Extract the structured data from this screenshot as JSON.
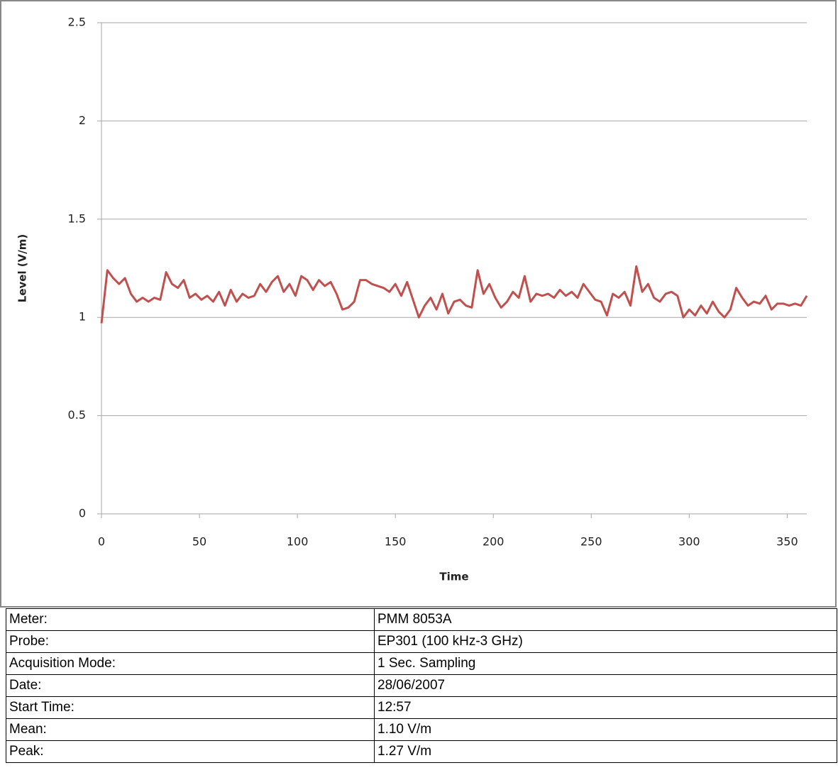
{
  "chart_data": {
    "type": "line",
    "x_label": "Time",
    "y_label": "Level (V/m)",
    "x": [
      0,
      3,
      6,
      9,
      12,
      15,
      18,
      21,
      24,
      27,
      30,
      33,
      36,
      39,
      42,
      45,
      48,
      51,
      54,
      57,
      60,
      63,
      66,
      69,
      72,
      75,
      78,
      81,
      84,
      87,
      90,
      93,
      96,
      99,
      102,
      105,
      108,
      111,
      114,
      117,
      120,
      123,
      126,
      129,
      132,
      135,
      138,
      141,
      144,
      147,
      150,
      153,
      156,
      159,
      162,
      165,
      168,
      171,
      174,
      177,
      180,
      183,
      186,
      189,
      192,
      195,
      198,
      201,
      204,
      207,
      210,
      213,
      216,
      219,
      222,
      225,
      228,
      231,
      234,
      237,
      240,
      243,
      246,
      249,
      252,
      255,
      258,
      261,
      264,
      267,
      270,
      273,
      276,
      279,
      282,
      285,
      288,
      291,
      294,
      297,
      300,
      303,
      306,
      309,
      312,
      315,
      318,
      321,
      324,
      327,
      330,
      333,
      336,
      339,
      342,
      345,
      348,
      351,
      354,
      357,
      360
    ],
    "series": [
      {
        "name": "Level",
        "color": "#c0504d",
        "values": [
          0.97,
          1.24,
          1.2,
          1.17,
          1.2,
          1.12,
          1.08,
          1.1,
          1.08,
          1.1,
          1.09,
          1.23,
          1.17,
          1.15,
          1.19,
          1.1,
          1.12,
          1.09,
          1.11,
          1.08,
          1.13,
          1.06,
          1.14,
          1.08,
          1.12,
          1.1,
          1.11,
          1.17,
          1.13,
          1.18,
          1.21,
          1.13,
          1.17,
          1.11,
          1.21,
          1.19,
          1.14,
          1.19,
          1.16,
          1.18,
          1.12,
          1.04,
          1.05,
          1.08,
          1.19,
          1.19,
          1.17,
          1.16,
          1.15,
          1.13,
          1.17,
          1.11,
          1.18,
          1.09,
          1.0,
          1.06,
          1.1,
          1.04,
          1.12,
          1.02,
          1.08,
          1.09,
          1.06,
          1.05,
          1.24,
          1.12,
          1.17,
          1.1,
          1.05,
          1.08,
          1.13,
          1.1,
          1.21,
          1.08,
          1.12,
          1.11,
          1.12,
          1.1,
          1.14,
          1.11,
          1.13,
          1.1,
          1.17,
          1.13,
          1.09,
          1.08,
          1.01,
          1.12,
          1.1,
          1.13,
          1.06,
          1.26,
          1.13,
          1.17,
          1.1,
          1.08,
          1.12,
          1.13,
          1.11,
          1.0,
          1.04,
          1.01,
          1.06,
          1.02,
          1.08,
          1.03,
          1.0,
          1.04,
          1.15,
          1.1,
          1.06,
          1.08,
          1.07,
          1.11,
          1.04,
          1.07,
          1.07,
          1.06,
          1.07,
          1.06,
          1.11
        ]
      }
    ],
    "xlim": [
      0,
      360
    ],
    "xticks": [
      0,
      50,
      100,
      150,
      200,
      250,
      300,
      350
    ],
    "ylim": [
      0,
      2.5
    ],
    "yticks": [
      0,
      0.5,
      1,
      1.5,
      2,
      2.5
    ],
    "grid": true
  },
  "table": {
    "rows": [
      [
        "Meter:",
        "PMM 8053A"
      ],
      [
        "Probe:",
        "EP301 (100 kHz-3 GHz)"
      ],
      [
        "Acquisition Mode:",
        "1 Sec. Sampling"
      ],
      [
        "Date:",
        "28/06/2007"
      ],
      [
        "Start Time:",
        "12:57"
      ],
      [
        "Mean:",
        "1.10 V/m"
      ],
      [
        "Peak:",
        "1.27 V/m"
      ]
    ]
  }
}
